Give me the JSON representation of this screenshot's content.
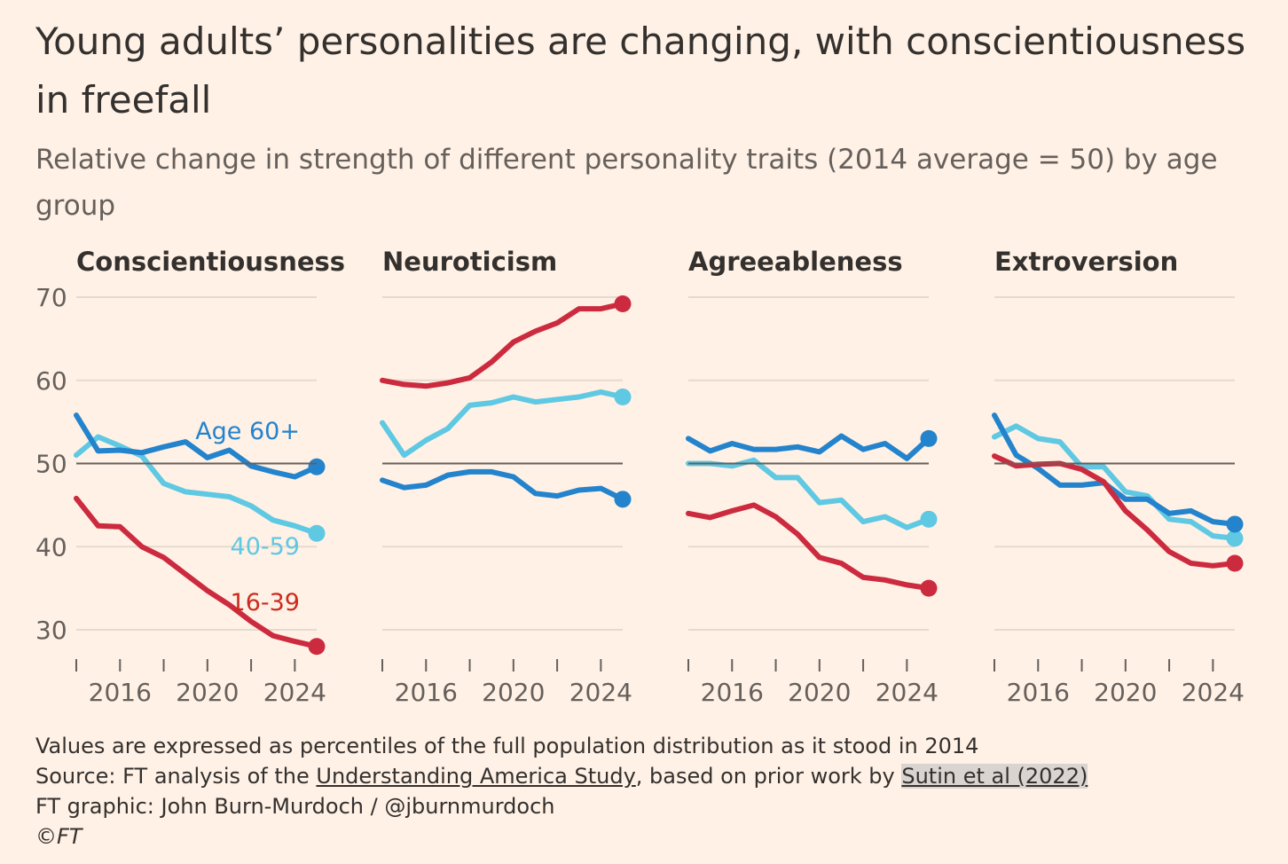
{
  "title": "Young adults’ personalities are changing, with conscientiousness in freefall",
  "subtitle": "Relative change in strength of different personality traits (2014 average = 50) by age group",
  "footer": {
    "note": "Values are expressed as percentiles of the full population distribution as it stood in 2014",
    "source_prefix": "Source: FT analysis of the ",
    "source_link1": "Understanding America Study",
    "source_middle": ", based on prior work by ",
    "source_link2": "Sutin et al (2022)",
    "credit": "FT graphic: John Burn-Murdoch / @jburnmurdoch",
    "copyright": "©FT"
  },
  "colors": {
    "age_16_39": "#cc2b3f",
    "age_40_59": "#5fc8e3",
    "age_60_plus": "#2383cc",
    "label_16_39": "#cc2b1f",
    "baseline": "#66605c",
    "grid": "#e6d9ce",
    "background": "#fff1e5"
  },
  "chart_data": {
    "type": "line",
    "y_ticks": [
      30,
      40,
      50,
      60,
      70
    ],
    "x_ticks": [
      2016,
      2020,
      2024
    ],
    "ylim": [
      27,
      71
    ],
    "xlim": [
      2014,
      2025
    ],
    "baseline": 50,
    "grid": true,
    "x": [
      2014,
      2015,
      2016,
      2017,
      2018,
      2019,
      2020,
      2021,
      2022,
      2023,
      2024,
      2025
    ],
    "series_labels": [
      "Age 60+",
      "40-59",
      "16-39"
    ],
    "panels": [
      {
        "name": "Conscientiousness",
        "series": [
          {
            "key": "age_60_plus",
            "values": [
              55.8,
              51.5,
              51.6,
              51.3,
              52.0,
              52.6,
              50.7,
              51.6,
              49.7,
              49.0,
              48.4,
              49.6
            ]
          },
          {
            "key": "age_40_59",
            "values": [
              51.0,
              53.2,
              52.1,
              50.9,
              47.6,
              46.6,
              46.3,
              46.0,
              44.9,
              43.2,
              42.5,
              41.6
            ]
          },
          {
            "key": "age_16_39",
            "values": [
              45.8,
              42.5,
              42.4,
              40.0,
              38.7,
              36.7,
              34.7,
              33.0,
              31.0,
              29.3,
              28.6,
              28.0
            ]
          }
        ]
      },
      {
        "name": "Neuroticism",
        "series": [
          {
            "key": "age_60_plus",
            "values": [
              48.0,
              47.1,
              47.4,
              48.6,
              49.0,
              49.0,
              48.4,
              46.4,
              46.1,
              46.8,
              47.0,
              45.7
            ]
          },
          {
            "key": "age_40_59",
            "values": [
              54.9,
              51.0,
              52.8,
              54.2,
              57.0,
              57.3,
              58.0,
              57.4,
              57.7,
              58.0,
              58.6,
              58.0
            ]
          },
          {
            "key": "age_16_39",
            "values": [
              60.0,
              59.5,
              59.3,
              59.7,
              60.3,
              62.2,
              64.6,
              65.9,
              66.9,
              68.6,
              68.6,
              69.2
            ]
          }
        ]
      },
      {
        "name": "Agreeableness",
        "series": [
          {
            "key": "age_60_plus",
            "values": [
              53.0,
              51.5,
              52.4,
              51.7,
              51.7,
              52.0,
              51.4,
              53.3,
              51.7,
              52.4,
              50.6,
              53.0
            ]
          },
          {
            "key": "age_40_59",
            "values": [
              50.0,
              50.0,
              49.7,
              50.4,
              48.3,
              48.3,
              45.3,
              45.6,
              43.0,
              43.6,
              42.3,
              43.3
            ]
          },
          {
            "key": "age_16_39",
            "values": [
              44.0,
              43.5,
              44.3,
              45.0,
              43.6,
              41.5,
              38.7,
              38.0,
              36.3,
              36.0,
              35.4,
              35.0
            ]
          }
        ]
      },
      {
        "name": "Extroversion",
        "series": [
          {
            "key": "age_60_plus",
            "values": [
              55.8,
              51.0,
              49.4,
              47.4,
              47.4,
              47.7,
              45.7,
              45.7,
              44.0,
              44.3,
              43.0,
              42.7
            ]
          },
          {
            "key": "age_40_59",
            "values": [
              53.2,
              54.5,
              53.0,
              52.6,
              49.6,
              49.6,
              46.6,
              46.1,
              43.3,
              43.0,
              41.3,
              41.0
            ]
          },
          {
            "key": "age_16_39",
            "values": [
              50.9,
              49.7,
              49.9,
              50.0,
              49.3,
              47.8,
              44.3,
              42.0,
              39.4,
              38.0,
              37.7,
              38.0
            ]
          }
        ]
      }
    ]
  }
}
